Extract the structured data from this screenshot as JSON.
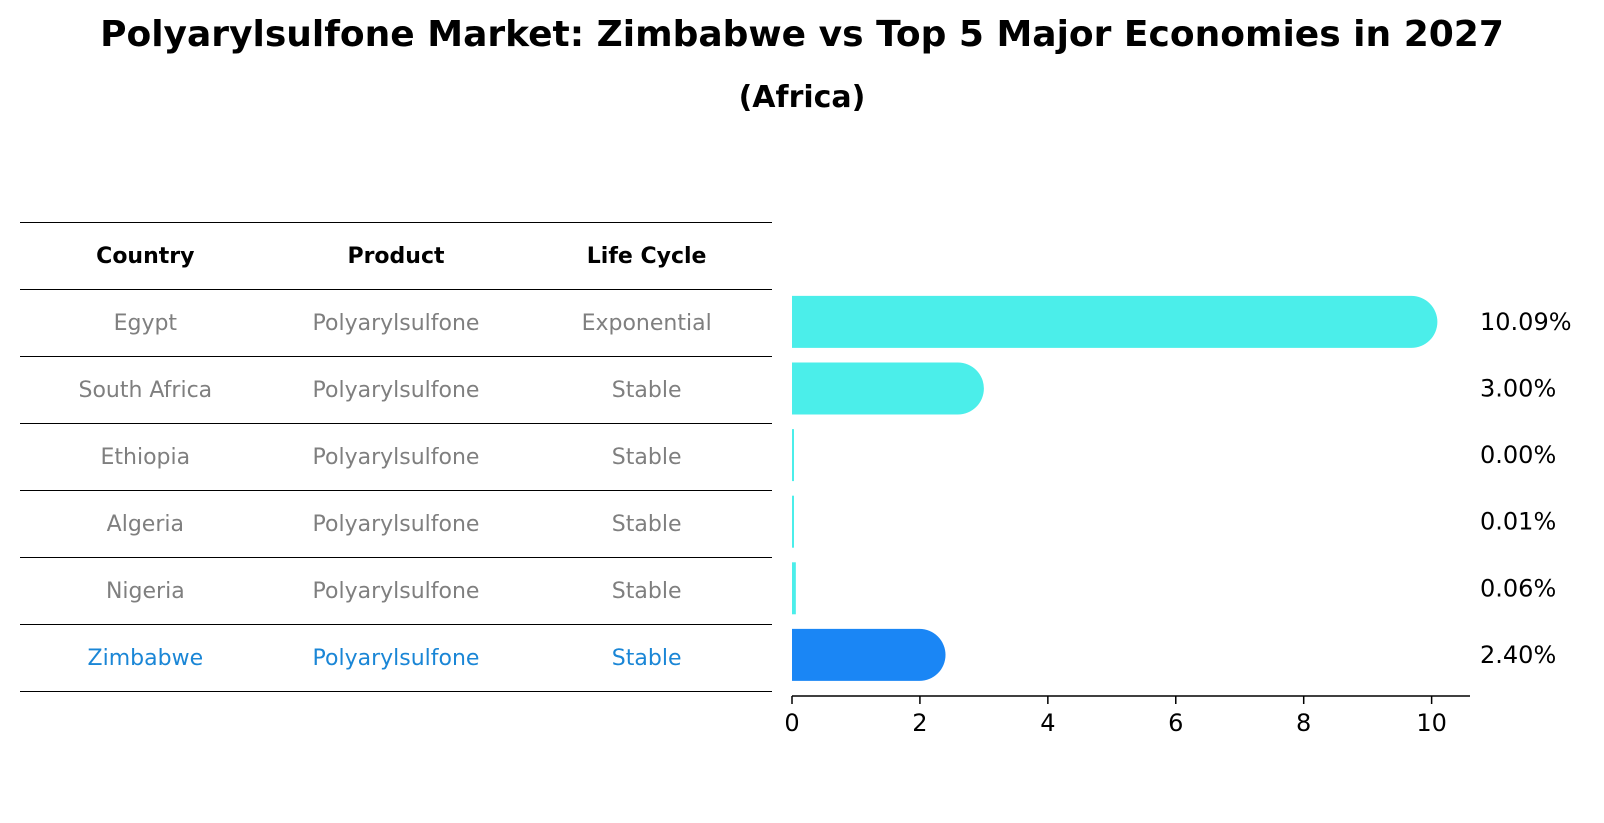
{
  "title": "Polyarylsulfone Market: Zimbabwe vs Top 5 Major Economies in 2027",
  "subtitle": "(Africa)",
  "table": {
    "headers": [
      "Country",
      "Product",
      "Life Cycle"
    ],
    "rows": [
      {
        "country": "Egypt",
        "product": "Polyarylsulfone",
        "life_cycle": "Exponential"
      },
      {
        "country": "South Africa",
        "product": "Polyarylsulfone",
        "life_cycle": "Stable"
      },
      {
        "country": "Ethiopia",
        "product": "Polyarylsulfone",
        "life_cycle": "Stable"
      },
      {
        "country": "Algeria",
        "product": "Polyarylsulfone",
        "life_cycle": "Stable"
      },
      {
        "country": "Nigeria",
        "product": "Polyarylsulfone",
        "life_cycle": "Stable"
      },
      {
        "country": "Zimbabwe",
        "product": "Polyarylsulfone",
        "life_cycle": "Stable"
      }
    ]
  },
  "colors": {
    "bar": "#4beeea",
    "highlight_bar": "#1a86f5",
    "highlight_text": "#1a86d6",
    "row_text": "#7f7f7f"
  },
  "chart_data": {
    "type": "bar",
    "orientation": "horizontal",
    "categories": [
      "Egypt",
      "South Africa",
      "Ethiopia",
      "Algeria",
      "Nigeria",
      "Zimbabwe"
    ],
    "values": [
      10.09,
      3.0,
      0.0,
      0.01,
      0.06,
      2.4
    ],
    "data_labels": [
      "10.09%",
      "3.00%",
      "0.00%",
      "0.01%",
      "0.06%",
      "2.40%"
    ],
    "highlight": "Zimbabwe",
    "xlim": [
      0,
      10.6
    ],
    "xticks": [
      0,
      2,
      4,
      6,
      8,
      10
    ],
    "grid": false
  }
}
